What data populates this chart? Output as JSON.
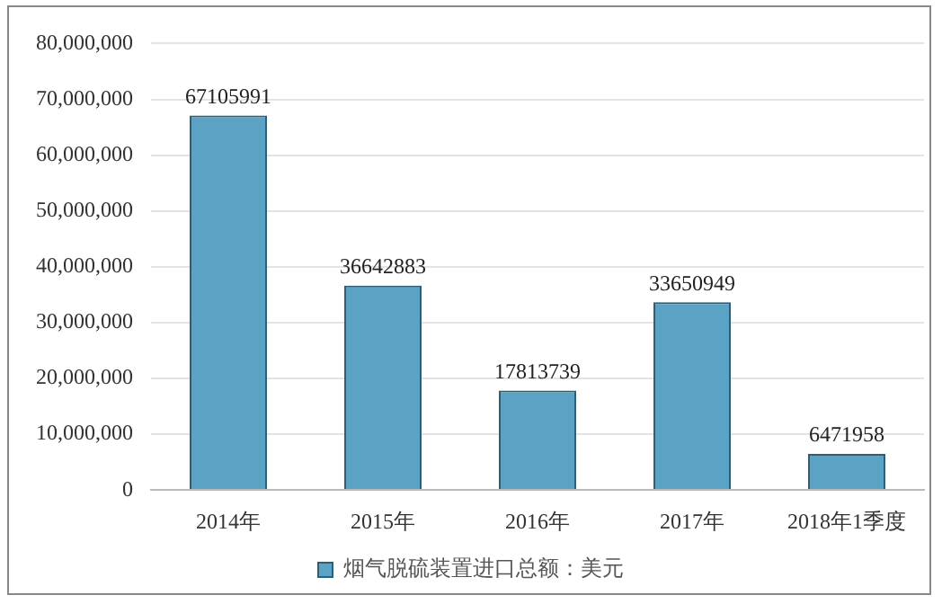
{
  "chart_data": {
    "type": "bar",
    "categories": [
      "2014年",
      "2015年",
      "2016年",
      "2017年",
      "2018年1季度"
    ],
    "series": [
      {
        "name": "烟气脱硫装置进口总额：美元",
        "color": "#5ba3c4",
        "values": [
          67105991,
          36642883,
          17813739,
          33650949,
          6471958
        ]
      }
    ],
    "ylim": [
      0,
      80000000
    ],
    "yticks": [
      {
        "value": 0,
        "label": "0"
      },
      {
        "value": 10000000,
        "label": "10,000,000"
      },
      {
        "value": 20000000,
        "label": "20,000,000"
      },
      {
        "value": 30000000,
        "label": "30,000,000"
      },
      {
        "value": 40000000,
        "label": "40,000,000"
      },
      {
        "value": 50000000,
        "label": "50,000,000"
      },
      {
        "value": 60000000,
        "label": "60,000,000"
      },
      {
        "value": 70000000,
        "label": "70,000,000"
      },
      {
        "value": 80000000,
        "label": "80,000,000"
      }
    ],
    "grid": "y",
    "legend": "bottom",
    "data_labels": true
  }
}
